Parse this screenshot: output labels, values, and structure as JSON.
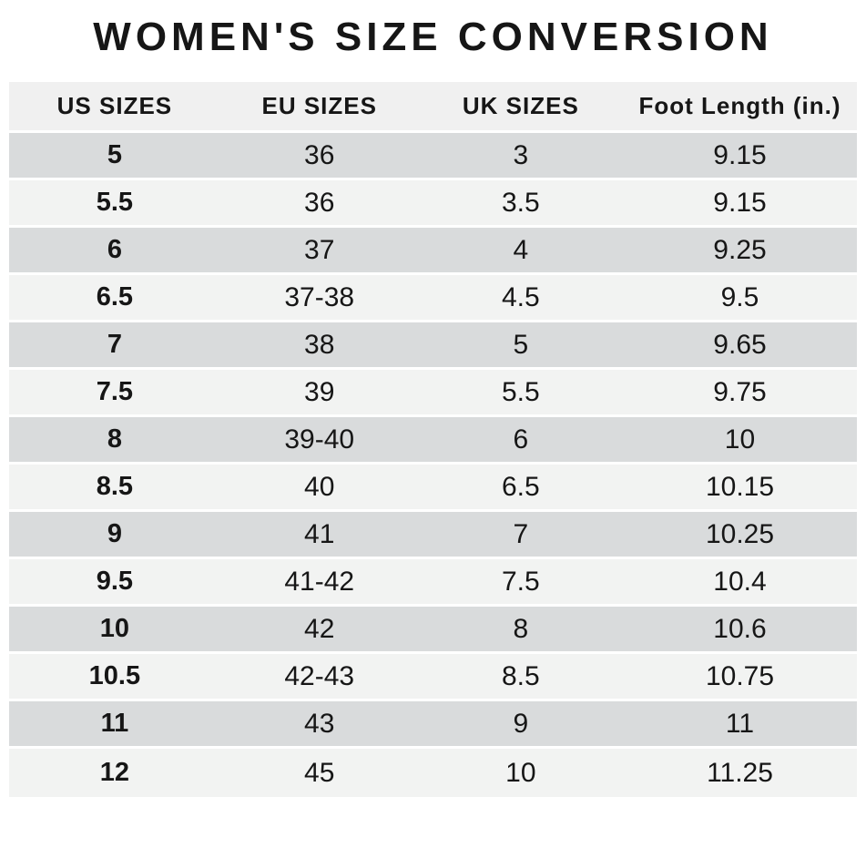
{
  "chart_data": {
    "type": "table",
    "title": "WOMEN'S SIZE CONVERSION",
    "columns": [
      "US SIZES",
      "EU SIZES",
      "UK SIZES",
      "Foot Length (in.)"
    ],
    "rows": [
      [
        "5",
        "36",
        "3",
        "9.15"
      ],
      [
        "5.5",
        "36",
        "3.5",
        "9.15"
      ],
      [
        "6",
        "37",
        "4",
        "9.25"
      ],
      [
        "6.5",
        "37-38",
        "4.5",
        "9.5"
      ],
      [
        "7",
        "38",
        "5",
        "9.65"
      ],
      [
        "7.5",
        "39",
        "5.5",
        "9.75"
      ],
      [
        "8",
        "39-40",
        "6",
        "10"
      ],
      [
        "8.5",
        "40",
        "6.5",
        "10.15"
      ],
      [
        "9",
        "41",
        "7",
        "10.25"
      ],
      [
        "9.5",
        "41-42",
        "7.5",
        "10.4"
      ],
      [
        "10",
        "42",
        "8",
        "10.6"
      ],
      [
        "10.5",
        "42-43",
        "8.5",
        "10.75"
      ],
      [
        "11",
        "43",
        "9",
        "11"
      ],
      [
        "12",
        "45",
        "10",
        "11.25"
      ]
    ],
    "layout_hints": {
      "first_column_bold": true,
      "striped_rows": true,
      "first_data_row_shade": "dark"
    }
  },
  "colors": {
    "row_dark": "#d9dbdc",
    "row_light": "#f2f3f2",
    "header_bg": "#f0f0f0",
    "text": "#161616",
    "background": "#ffffff"
  }
}
